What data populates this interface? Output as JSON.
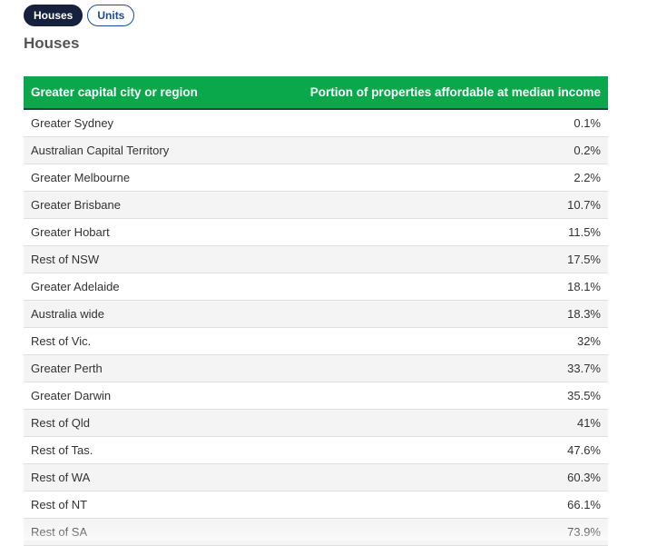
{
  "toggle": {
    "houses_label": "Houses",
    "units_label": "Units"
  },
  "heading": "Houses",
  "table": {
    "columns": [
      "Greater capital city or region",
      "Portion of properties affordable at median income"
    ],
    "rows": [
      {
        "region": "Greater Sydney",
        "value": "0.1%"
      },
      {
        "region": "Australian Capital Territory",
        "value": "0.2%"
      },
      {
        "region": "Greater Melbourne",
        "value": "2.2%"
      },
      {
        "region": "Greater Brisbane",
        "value": "10.7%"
      },
      {
        "region": "Greater Hobart",
        "value": "11.5%"
      },
      {
        "region": "Rest of NSW",
        "value": "17.5%"
      },
      {
        "region": "Greater Adelaide",
        "value": "18.1%"
      },
      {
        "region": "Australia wide",
        "value": "18.3%"
      },
      {
        "region": "Rest of Vic.",
        "value": "32%"
      },
      {
        "region": "Greater Perth",
        "value": "33.7%"
      },
      {
        "region": "Greater Darwin",
        "value": "35.5%"
      },
      {
        "region": "Rest of Qld",
        "value": "41%"
      },
      {
        "region": "Rest of Tas.",
        "value": "47.6%"
      },
      {
        "region": "Rest of WA",
        "value": "60.3%"
      },
      {
        "region": "Rest of NT",
        "value": "66.1%"
      },
      {
        "region": "Rest of SA",
        "value": "73.9%"
      }
    ]
  },
  "colors": {
    "header_bg": "#0aa84a",
    "active_pill": "#16213d",
    "inactive_pill_border": "#1b4b9c"
  }
}
